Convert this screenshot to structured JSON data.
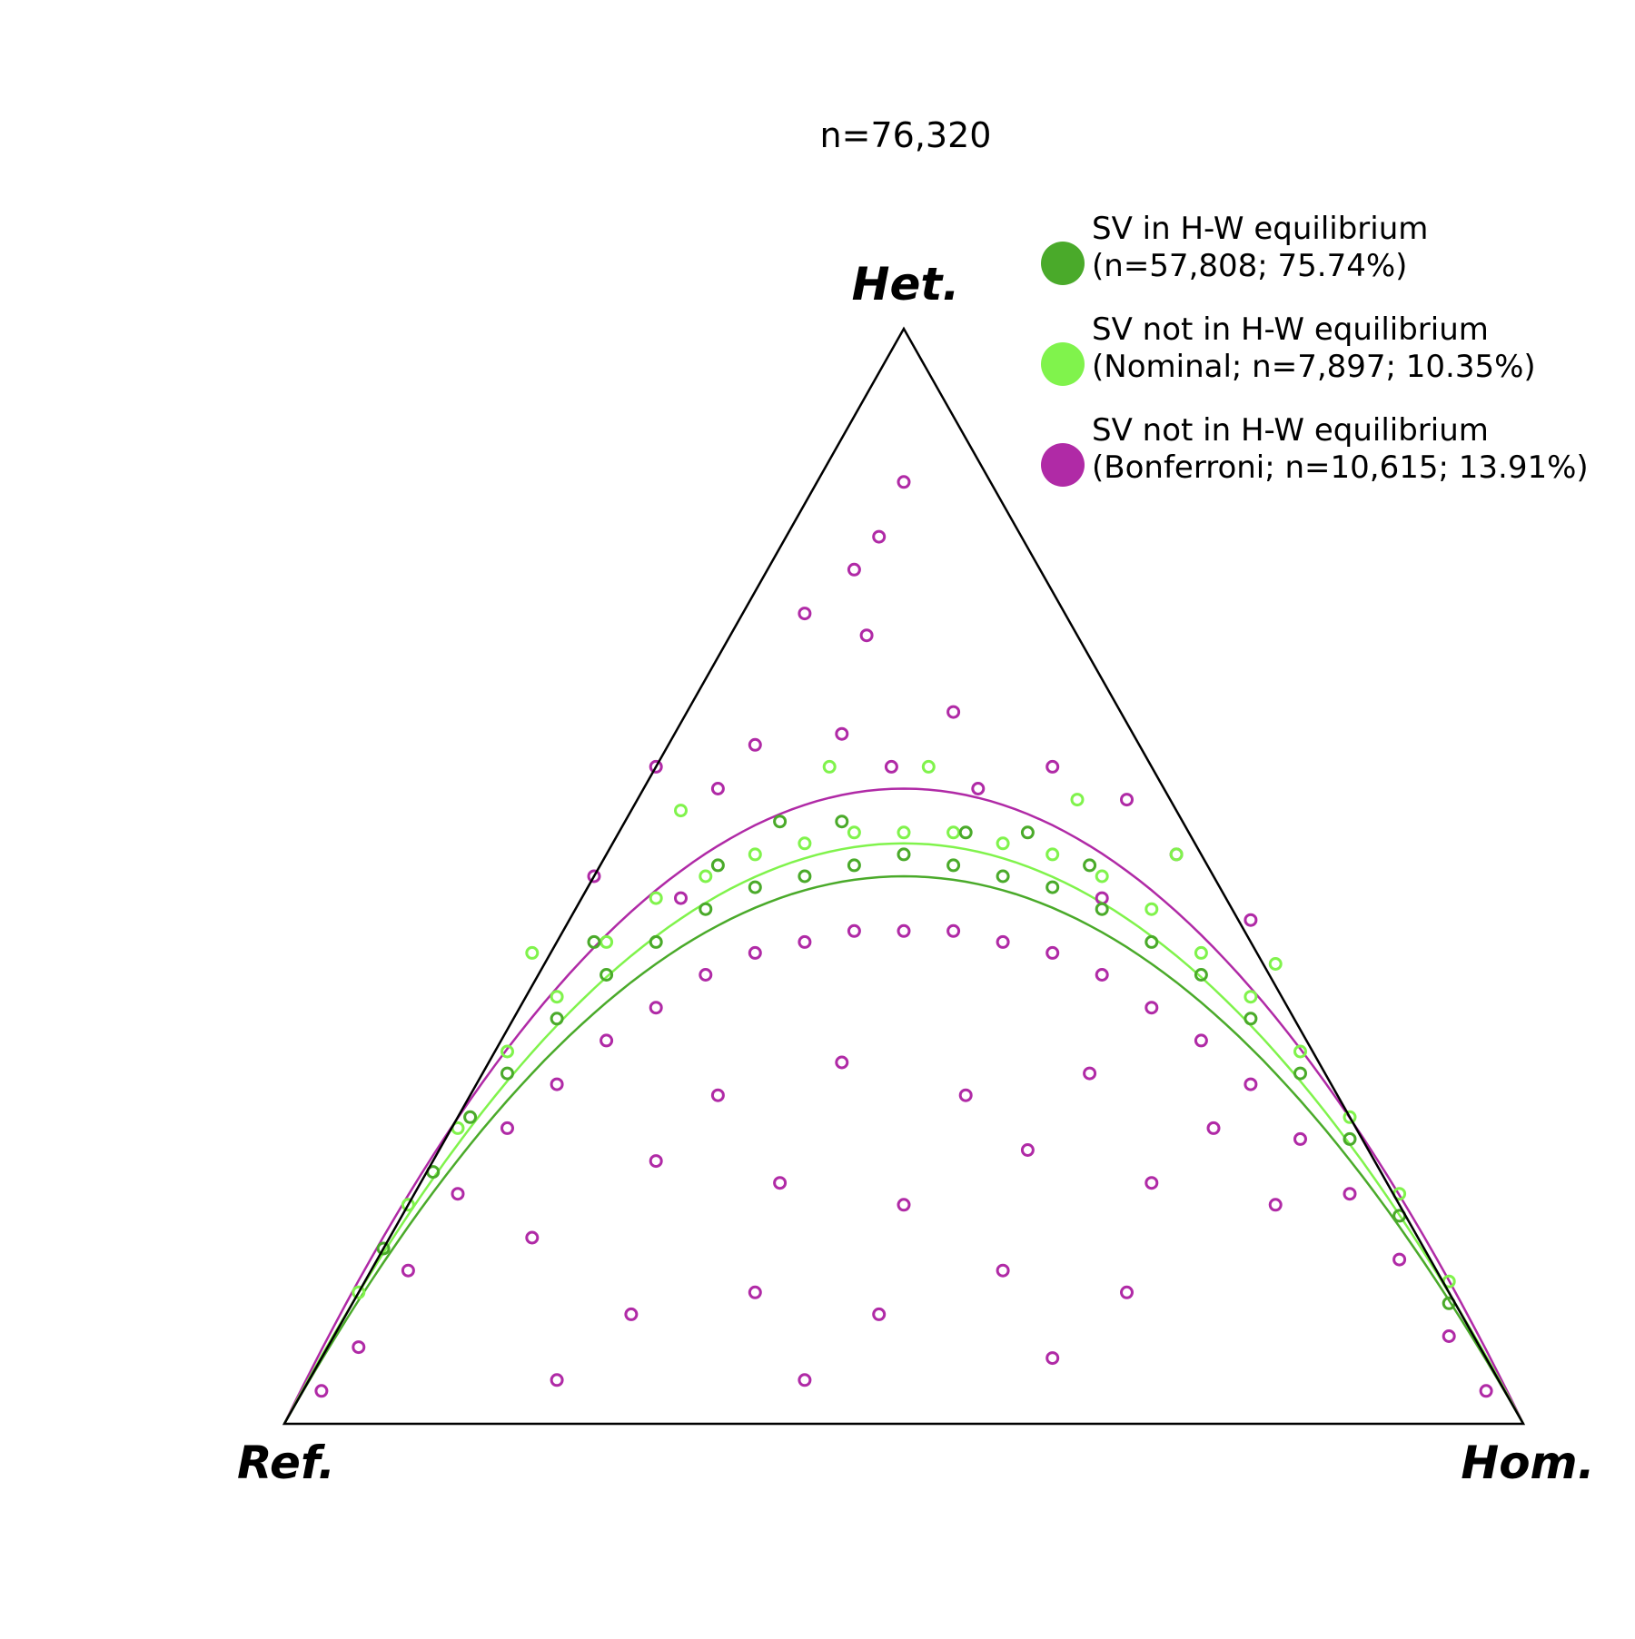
{
  "chart_data": {
    "type": "scatter",
    "title": "n=76,320",
    "vertices": {
      "top": "Het.",
      "left": "Ref.",
      "right": "Hom."
    },
    "colors": {
      "hwe": "#4aaa2a",
      "nominal": "#80f34c",
      "bonferroni": "#b02aa6"
    },
    "legend": [
      {
        "key": "hwe",
        "line1": "SV in H-W equilibrium",
        "line2": "(n=57,808; 75.74%)"
      },
      {
        "key": "nominal",
        "line1": "SV not in H-W equilibrium",
        "line2": "(Nominal; n=7,897; 10.35%)"
      },
      {
        "key": "bonferroni",
        "line1": "SV not in H-W equilibrium",
        "line2": "(Bonferroni; n=10,615; 13.91%)"
      }
    ],
    "series": [
      {
        "key": "hwe",
        "points": [
          [
            0.08,
            0.16
          ],
          [
            0.12,
            0.23
          ],
          [
            0.15,
            0.28
          ],
          [
            0.18,
            0.32
          ],
          [
            0.22,
            0.37
          ],
          [
            0.26,
            0.41
          ],
          [
            0.3,
            0.44
          ],
          [
            0.34,
            0.47
          ],
          [
            0.38,
            0.49
          ],
          [
            0.42,
            0.5
          ],
          [
            0.46,
            0.51
          ],
          [
            0.5,
            0.52
          ],
          [
            0.54,
            0.51
          ],
          [
            0.58,
            0.5
          ],
          [
            0.62,
            0.49
          ],
          [
            0.66,
            0.47
          ],
          [
            0.7,
            0.44
          ],
          [
            0.74,
            0.41
          ],
          [
            0.78,
            0.37
          ],
          [
            0.82,
            0.32
          ],
          [
            0.86,
            0.26
          ],
          [
            0.9,
            0.19
          ],
          [
            0.94,
            0.11
          ],
          [
            0.35,
            0.51
          ],
          [
            0.45,
            0.55
          ],
          [
            0.55,
            0.54
          ],
          [
            0.65,
            0.51
          ],
          [
            0.25,
            0.44
          ],
          [
            0.4,
            0.55
          ],
          [
            0.6,
            0.54
          ]
        ]
      },
      {
        "key": "nominal",
        "points": [
          [
            0.06,
            0.12
          ],
          [
            0.1,
            0.2
          ],
          [
            0.14,
            0.27
          ],
          [
            0.18,
            0.34
          ],
          [
            0.22,
            0.39
          ],
          [
            0.26,
            0.44
          ],
          [
            0.3,
            0.48
          ],
          [
            0.34,
            0.5
          ],
          [
            0.38,
            0.52
          ],
          [
            0.42,
            0.53
          ],
          [
            0.46,
            0.54
          ],
          [
            0.5,
            0.54
          ],
          [
            0.54,
            0.54
          ],
          [
            0.58,
            0.53
          ],
          [
            0.62,
            0.52
          ],
          [
            0.66,
            0.5
          ],
          [
            0.7,
            0.47
          ],
          [
            0.74,
            0.43
          ],
          [
            0.78,
            0.39
          ],
          [
            0.82,
            0.34
          ],
          [
            0.86,
            0.28
          ],
          [
            0.9,
            0.21
          ],
          [
            0.94,
            0.13
          ],
          [
            0.32,
            0.56
          ],
          [
            0.44,
            0.6
          ],
          [
            0.52,
            0.6
          ],
          [
            0.64,
            0.57
          ],
          [
            0.72,
            0.52
          ],
          [
            0.2,
            0.43
          ],
          [
            0.8,
            0.42
          ]
        ]
      },
      {
        "key": "bonferroni",
        "points": [
          [
            0.03,
            0.03
          ],
          [
            0.06,
            0.07
          ],
          [
            0.1,
            0.14
          ],
          [
            0.14,
            0.21
          ],
          [
            0.18,
            0.27
          ],
          [
            0.22,
            0.31
          ],
          [
            0.26,
            0.35
          ],
          [
            0.3,
            0.38
          ],
          [
            0.34,
            0.41
          ],
          [
            0.38,
            0.43
          ],
          [
            0.42,
            0.44
          ],
          [
            0.46,
            0.45
          ],
          [
            0.5,
            0.45
          ],
          [
            0.54,
            0.45
          ],
          [
            0.58,
            0.44
          ],
          [
            0.62,
            0.43
          ],
          [
            0.66,
            0.41
          ],
          [
            0.7,
            0.38
          ],
          [
            0.74,
            0.35
          ],
          [
            0.78,
            0.31
          ],
          [
            0.82,
            0.26
          ],
          [
            0.86,
            0.21
          ],
          [
            0.9,
            0.15
          ],
          [
            0.94,
            0.08
          ],
          [
            0.97,
            0.03
          ],
          [
            0.2,
            0.17
          ],
          [
            0.3,
            0.24
          ],
          [
            0.35,
            0.3
          ],
          [
            0.4,
            0.22
          ],
          [
            0.45,
            0.33
          ],
          [
            0.5,
            0.2
          ],
          [
            0.55,
            0.3
          ],
          [
            0.6,
            0.25
          ],
          [
            0.65,
            0.32
          ],
          [
            0.7,
            0.22
          ],
          [
            0.75,
            0.27
          ],
          [
            0.8,
            0.2
          ],
          [
            0.28,
            0.1
          ],
          [
            0.38,
            0.12
          ],
          [
            0.48,
            0.1
          ],
          [
            0.58,
            0.14
          ],
          [
            0.68,
            0.12
          ],
          [
            0.22,
            0.04
          ],
          [
            0.42,
            0.04
          ],
          [
            0.62,
            0.06
          ],
          [
            0.5,
            0.86
          ],
          [
            0.48,
            0.81
          ],
          [
            0.46,
            0.78
          ],
          [
            0.42,
            0.74
          ],
          [
            0.47,
            0.72
          ],
          [
            0.49,
            0.6
          ],
          [
            0.38,
            0.62
          ],
          [
            0.56,
            0.58
          ],
          [
            0.62,
            0.6
          ],
          [
            0.35,
            0.58
          ],
          [
            0.68,
            0.57
          ],
          [
            0.45,
            0.63
          ],
          [
            0.54,
            0.65
          ],
          [
            0.3,
            0.6
          ],
          [
            0.72,
            0.52
          ],
          [
            0.25,
            0.5
          ],
          [
            0.78,
            0.46
          ],
          [
            0.32,
            0.48
          ],
          [
            0.66,
            0.48
          ]
        ]
      }
    ],
    "curves": [
      {
        "key": "bonferroni",
        "peak": 0.58
      },
      {
        "key": "nominal",
        "peak": 0.53
      },
      {
        "key": "hwe",
        "peak": 0.5
      }
    ]
  }
}
